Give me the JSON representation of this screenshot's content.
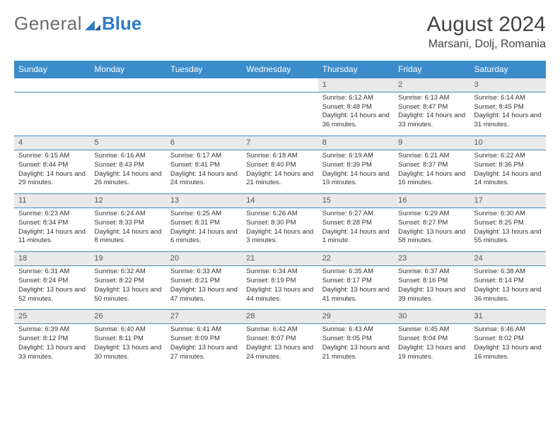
{
  "logo": {
    "general": "General",
    "blue": "Blue"
  },
  "title": "August 2024",
  "location": "Marsani, Dolj, Romania",
  "colors": {
    "header_bg": "#3b8ccb",
    "header_text": "#ffffff",
    "daynum_bg": "#e9e9e9",
    "cell_border": "#3b8ccb",
    "text": "#333333",
    "logo_gray": "#6b6b6b",
    "logo_blue": "#2f7cc4"
  },
  "weekdays": [
    "Sunday",
    "Monday",
    "Tuesday",
    "Wednesday",
    "Thursday",
    "Friday",
    "Saturday"
  ],
  "weeks": [
    [
      null,
      null,
      null,
      null,
      {
        "n": "1",
        "sr": "6:12 AM",
        "ss": "8:48 PM",
        "dl": "14 hours and 36 minutes."
      },
      {
        "n": "2",
        "sr": "6:13 AM",
        "ss": "8:47 PM",
        "dl": "14 hours and 33 minutes."
      },
      {
        "n": "3",
        "sr": "6:14 AM",
        "ss": "8:45 PM",
        "dl": "14 hours and 31 minutes."
      }
    ],
    [
      {
        "n": "4",
        "sr": "6:15 AM",
        "ss": "8:44 PM",
        "dl": "14 hours and 29 minutes."
      },
      {
        "n": "5",
        "sr": "6:16 AM",
        "ss": "8:43 PM",
        "dl": "14 hours and 26 minutes."
      },
      {
        "n": "6",
        "sr": "6:17 AM",
        "ss": "8:41 PM",
        "dl": "14 hours and 24 minutes."
      },
      {
        "n": "7",
        "sr": "6:18 AM",
        "ss": "8:40 PM",
        "dl": "14 hours and 21 minutes."
      },
      {
        "n": "8",
        "sr": "6:19 AM",
        "ss": "8:39 PM",
        "dl": "14 hours and 19 minutes."
      },
      {
        "n": "9",
        "sr": "6:21 AM",
        "ss": "8:37 PM",
        "dl": "14 hours and 16 minutes."
      },
      {
        "n": "10",
        "sr": "6:22 AM",
        "ss": "8:36 PM",
        "dl": "14 hours and 14 minutes."
      }
    ],
    [
      {
        "n": "11",
        "sr": "6:23 AM",
        "ss": "8:34 PM",
        "dl": "14 hours and 11 minutes."
      },
      {
        "n": "12",
        "sr": "6:24 AM",
        "ss": "8:33 PM",
        "dl": "14 hours and 8 minutes."
      },
      {
        "n": "13",
        "sr": "6:25 AM",
        "ss": "8:31 PM",
        "dl": "14 hours and 6 minutes."
      },
      {
        "n": "14",
        "sr": "6:26 AM",
        "ss": "8:30 PM",
        "dl": "14 hours and 3 minutes."
      },
      {
        "n": "15",
        "sr": "6:27 AM",
        "ss": "8:28 PM",
        "dl": "14 hours and 1 minute."
      },
      {
        "n": "16",
        "sr": "6:29 AM",
        "ss": "8:27 PM",
        "dl": "13 hours and 58 minutes."
      },
      {
        "n": "17",
        "sr": "6:30 AM",
        "ss": "8:25 PM",
        "dl": "13 hours and 55 minutes."
      }
    ],
    [
      {
        "n": "18",
        "sr": "6:31 AM",
        "ss": "8:24 PM",
        "dl": "13 hours and 52 minutes."
      },
      {
        "n": "19",
        "sr": "6:32 AM",
        "ss": "8:22 PM",
        "dl": "13 hours and 50 minutes."
      },
      {
        "n": "20",
        "sr": "6:33 AM",
        "ss": "8:21 PM",
        "dl": "13 hours and 47 minutes."
      },
      {
        "n": "21",
        "sr": "6:34 AM",
        "ss": "8:19 PM",
        "dl": "13 hours and 44 minutes."
      },
      {
        "n": "22",
        "sr": "6:35 AM",
        "ss": "8:17 PM",
        "dl": "13 hours and 41 minutes."
      },
      {
        "n": "23",
        "sr": "6:37 AM",
        "ss": "8:16 PM",
        "dl": "13 hours and 39 minutes."
      },
      {
        "n": "24",
        "sr": "6:38 AM",
        "ss": "8:14 PM",
        "dl": "13 hours and 36 minutes."
      }
    ],
    [
      {
        "n": "25",
        "sr": "6:39 AM",
        "ss": "8:12 PM",
        "dl": "13 hours and 33 minutes."
      },
      {
        "n": "26",
        "sr": "6:40 AM",
        "ss": "8:11 PM",
        "dl": "13 hours and 30 minutes."
      },
      {
        "n": "27",
        "sr": "6:41 AM",
        "ss": "8:09 PM",
        "dl": "13 hours and 27 minutes."
      },
      {
        "n": "28",
        "sr": "6:42 AM",
        "ss": "8:07 PM",
        "dl": "13 hours and 24 minutes."
      },
      {
        "n": "29",
        "sr": "6:43 AM",
        "ss": "8:05 PM",
        "dl": "13 hours and 21 minutes."
      },
      {
        "n": "30",
        "sr": "6:45 AM",
        "ss": "8:04 PM",
        "dl": "13 hours and 19 minutes."
      },
      {
        "n": "31",
        "sr": "6:46 AM",
        "ss": "8:02 PM",
        "dl": "13 hours and 16 minutes."
      }
    ]
  ],
  "labels": {
    "sunrise": "Sunrise:",
    "sunset": "Sunset:",
    "daylight": "Daylight:"
  }
}
